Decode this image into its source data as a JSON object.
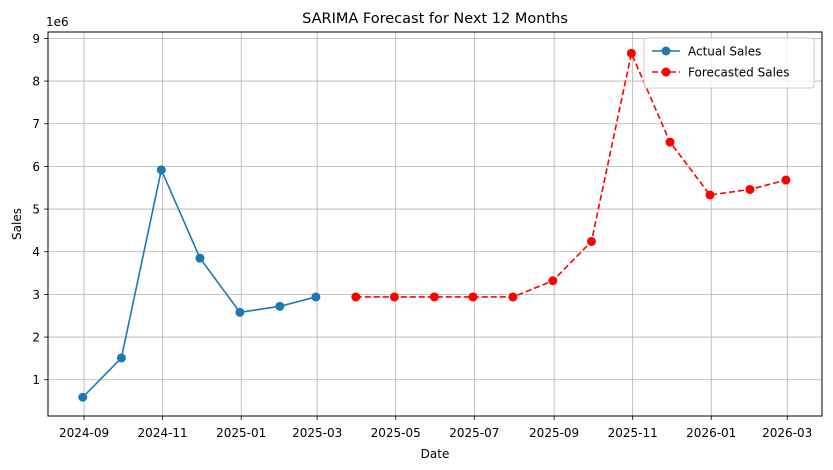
{
  "chart_data": {
    "type": "line",
    "title": "SARIMA Forecast for Next 12 Months",
    "xlabel": "Date",
    "ylabel": "Sales",
    "y_offset_label": "1e6",
    "y_scale": 1000000,
    "xlim": [
      "2024-08-04",
      "2026-03-28"
    ],
    "ylim": [
      150000,
      9150000
    ],
    "x_ticks": [
      "2024-09",
      "2024-11",
      "2025-01",
      "2025-03",
      "2025-05",
      "2025-07",
      "2025-09",
      "2025-11",
      "2026-01",
      "2026-03"
    ],
    "y_ticks": [
      1,
      2,
      3,
      4,
      5,
      6,
      7,
      8,
      9
    ],
    "grid": true,
    "legend_position": "top-right",
    "series": [
      {
        "name": "Actual Sales",
        "color": "#1f77b4",
        "line_style": "solid",
        "marker_shape": "circle",
        "x": [
          "2024-08-31",
          "2024-09-30",
          "2024-10-31",
          "2024-11-30",
          "2024-12-31",
          "2025-01-31",
          "2025-02-28"
        ],
        "values": [
          590000,
          1510000,
          5920000,
          3850000,
          2580000,
          2720000,
          2940000
        ]
      },
      {
        "name": "Forecasted Sales",
        "color": "#ff0000",
        "line_style": "dashed",
        "marker_shape": "circle",
        "x": [
          "2025-03-31",
          "2025-04-30",
          "2025-05-31",
          "2025-06-30",
          "2025-07-31",
          "2025-08-31",
          "2025-09-30",
          "2025-10-31",
          "2025-11-30",
          "2025-12-31",
          "2026-01-31",
          "2026-02-28"
        ],
        "values": [
          2940000,
          2940000,
          2940000,
          2940000,
          2940000,
          3320000,
          4240000,
          8650000,
          6570000,
          5330000,
          5460000,
          5680000
        ]
      }
    ]
  }
}
